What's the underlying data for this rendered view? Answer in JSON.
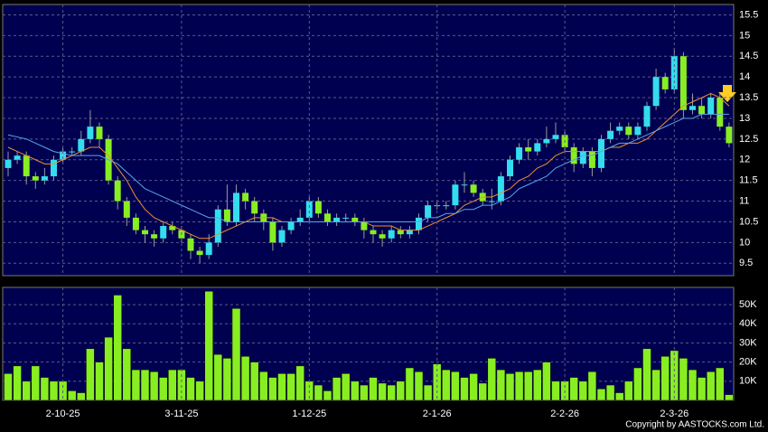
{
  "chart_data": [
    {
      "type": "candlestick",
      "up_color": "#33ddee",
      "down_color": "#88ee22",
      "grid": true,
      "ylim": [
        9.2,
        15.75
      ],
      "yticks": [
        9.5,
        10,
        10.5,
        11,
        11.5,
        12,
        12.5,
        13,
        13.5,
        14,
        14.5,
        15,
        15.5
      ],
      "open": [
        11.8,
        12.0,
        12.1,
        11.6,
        11.5,
        11.6,
        12.0,
        12.2,
        12.2,
        12.5,
        12.8,
        12.5,
        11.5,
        11.0,
        10.6,
        10.3,
        10.2,
        10.1,
        10.4,
        10.3,
        10.1,
        9.8,
        9.7,
        10.0,
        10.8,
        10.5,
        11.2,
        11.0,
        10.7,
        10.5,
        10.0,
        10.3,
        10.5,
        10.6,
        11.0,
        10.7,
        10.5,
        10.6,
        10.6,
        10.5,
        10.3,
        10.2,
        10.1,
        10.3,
        10.2,
        10.3,
        10.6,
        10.9,
        10.9,
        10.9,
        11.4,
        11.4,
        11.2,
        11.0,
        11.0,
        11.6,
        12.0,
        12.3,
        12.2,
        12.4,
        12.5,
        12.6,
        12.3,
        11.9,
        12.2,
        11.8,
        12.5,
        12.7,
        12.8,
        12.6,
        12.8,
        13.3,
        14.0,
        13.7,
        14.5,
        13.2,
        13.3,
        13.1,
        13.5,
        12.8
      ],
      "high": [
        12.2,
        12.2,
        12.2,
        11.7,
        11.8,
        12.1,
        12.3,
        12.3,
        12.7,
        13.2,
        12.9,
        12.6,
        11.6,
        11.1,
        10.7,
        10.4,
        10.3,
        10.5,
        10.5,
        10.4,
        10.2,
        9.9,
        10.2,
        10.9,
        11.4,
        11.4,
        11.3,
        11.1,
        10.8,
        10.6,
        10.4,
        10.6,
        10.8,
        11.1,
        11.1,
        10.8,
        10.7,
        10.7,
        10.7,
        10.6,
        10.4,
        10.3,
        10.4,
        10.4,
        10.4,
        10.7,
        11.0,
        11.0,
        11.0,
        11.5,
        11.7,
        11.5,
        11.3,
        11.3,
        11.7,
        12.1,
        12.4,
        12.5,
        12.5,
        12.8,
        12.9,
        12.7,
        12.4,
        12.3,
        12.3,
        12.6,
        12.9,
        12.9,
        12.9,
        12.9,
        13.4,
        14.2,
        14.1,
        14.7,
        14.6,
        13.6,
        13.5,
        13.6,
        13.6,
        12.9
      ],
      "low": [
        11.6,
        11.9,
        11.4,
        11.3,
        11.4,
        11.5,
        11.9,
        12.1,
        12.1,
        12.4,
        12.3,
        11.4,
        10.8,
        10.4,
        10.2,
        10.0,
        9.9,
        10.0,
        10.2,
        10.0,
        9.6,
        9.5,
        9.6,
        9.9,
        10.4,
        10.4,
        10.8,
        10.5,
        10.3,
        9.8,
        9.9,
        10.2,
        10.4,
        10.5,
        10.6,
        10.4,
        10.4,
        10.5,
        10.4,
        10.1,
        10.0,
        9.9,
        10.0,
        10.1,
        10.1,
        10.2,
        10.5,
        10.8,
        10.8,
        10.8,
        11.2,
        11.1,
        10.9,
        10.8,
        10.9,
        11.5,
        11.9,
        12.0,
        12.1,
        12.3,
        12.4,
        12.2,
        11.7,
        11.8,
        11.6,
        11.7,
        12.4,
        12.6,
        12.5,
        12.5,
        12.7,
        13.2,
        13.6,
        13.6,
        13.0,
        13.1,
        13.0,
        13.0,
        12.7,
        12.3
      ],
      "close": [
        12.0,
        12.1,
        11.6,
        11.5,
        11.6,
        12.0,
        12.2,
        12.2,
        12.5,
        12.8,
        12.5,
        11.5,
        11.0,
        10.6,
        10.3,
        10.2,
        10.1,
        10.4,
        10.3,
        10.1,
        9.8,
        9.7,
        10.0,
        10.8,
        10.5,
        11.2,
        11.0,
        10.7,
        10.5,
        10.0,
        10.3,
        10.5,
        10.6,
        11.0,
        10.7,
        10.5,
        10.6,
        10.6,
        10.5,
        10.3,
        10.2,
        10.1,
        10.3,
        10.2,
        10.3,
        10.6,
        10.9,
        10.9,
        10.9,
        11.4,
        11.4,
        11.2,
        11.0,
        11.0,
        11.6,
        12.0,
        12.3,
        12.2,
        12.4,
        12.5,
        12.6,
        12.3,
        11.9,
        12.2,
        11.8,
        12.5,
        12.7,
        12.8,
        12.6,
        12.8,
        13.3,
        14.0,
        13.7,
        14.5,
        13.2,
        13.3,
        13.1,
        13.5,
        12.8,
        12.4
      ],
      "series": [
        {
          "color": "#f09030",
          "values": [
            12.3,
            12.2,
            12.1,
            12.0,
            11.9,
            11.9,
            12.0,
            12.1,
            12.2,
            12.3,
            12.3,
            12.1,
            11.8,
            11.5,
            11.1,
            10.8,
            10.6,
            10.5,
            10.4,
            10.3,
            10.2,
            10.1,
            10.1,
            10.2,
            10.3,
            10.4,
            10.5,
            10.6,
            10.6,
            10.6,
            10.5,
            10.5,
            10.5,
            10.5,
            10.5,
            10.5,
            10.5,
            10.5,
            10.5,
            10.5,
            10.4,
            10.4,
            10.4,
            10.3,
            10.3,
            10.3,
            10.4,
            10.5,
            10.6,
            10.7,
            10.9,
            11.0,
            11.1,
            11.1,
            11.2,
            11.3,
            11.5,
            11.6,
            11.8,
            11.9,
            12.1,
            12.2,
            12.2,
            12.2,
            12.2,
            12.2,
            12.3,
            12.3,
            12.4,
            12.4,
            12.5,
            12.7,
            12.9,
            13.1,
            13.3,
            13.4,
            13.5,
            13.6,
            13.5,
            13.3
          ]
        },
        {
          "color": "#5aa8e8",
          "values": [
            12.6,
            12.55,
            12.5,
            12.4,
            12.3,
            12.2,
            12.15,
            12.1,
            12.1,
            12.1,
            12.1,
            12.0,
            11.9,
            11.7,
            11.5,
            11.3,
            11.2,
            11.1,
            11.0,
            10.9,
            10.8,
            10.7,
            10.6,
            10.6,
            10.5,
            10.5,
            10.5,
            10.5,
            10.5,
            10.5,
            10.5,
            10.5,
            10.5,
            10.5,
            10.5,
            10.5,
            10.5,
            10.5,
            10.5,
            10.5,
            10.5,
            10.5,
            10.5,
            10.5,
            10.5,
            10.5,
            10.6,
            10.6,
            10.7,
            10.7,
            10.8,
            10.8,
            10.9,
            10.9,
            11.0,
            11.1,
            11.3,
            11.4,
            11.5,
            11.6,
            11.8,
            11.9,
            12.0,
            12.1,
            12.1,
            12.2,
            12.3,
            12.4,
            12.4,
            12.5,
            12.6,
            12.7,
            12.8,
            12.9,
            13.0,
            13.0,
            13.1,
            13.1,
            13.1,
            13.1
          ]
        }
      ]
    },
    {
      "type": "bar",
      "color": "#88ee22",
      "grid": true,
      "ylim": [
        0,
        59000
      ],
      "yticks": [
        {
          "value": 10000,
          "label": "10K"
        },
        {
          "value": 20000,
          "label": "20K"
        },
        {
          "value": 30000,
          "label": "30K"
        },
        {
          "value": 40000,
          "label": "40K"
        },
        {
          "value": 50000,
          "label": "50K"
        }
      ],
      "categories": [
        null,
        null,
        null,
        null,
        null,
        null,
        "2-10-25",
        null,
        null,
        null,
        null,
        null,
        null,
        null,
        null,
        null,
        null,
        null,
        null,
        "3-11-25",
        null,
        null,
        null,
        null,
        null,
        null,
        null,
        null,
        null,
        null,
        null,
        null,
        null,
        "1-12-25",
        null,
        null,
        null,
        null,
        null,
        null,
        null,
        null,
        null,
        null,
        null,
        null,
        null,
        "2-1-26",
        null,
        null,
        null,
        null,
        null,
        null,
        null,
        null,
        null,
        null,
        null,
        null,
        null,
        "2-2-26",
        null,
        null,
        null,
        null,
        null,
        null,
        null,
        null,
        null,
        null,
        null,
        "2-3-26",
        null,
        null,
        null,
        null,
        null,
        null
      ],
      "values": [
        14000,
        18000,
        10000,
        18000,
        12000,
        10000,
        10000,
        5000,
        4000,
        27000,
        20000,
        33000,
        55000,
        27000,
        16000,
        16000,
        15000,
        12000,
        16000,
        16000,
        12000,
        10000,
        57000,
        24000,
        22000,
        48000,
        23000,
        20000,
        15000,
        12000,
        14000,
        14000,
        18000,
        10000,
        8000,
        5000,
        12000,
        14000,
        10000,
        8000,
        12000,
        9000,
        8000,
        10000,
        17000,
        15000,
        8000,
        19000,
        16000,
        15000,
        12000,
        14000,
        9000,
        22000,
        16000,
        14000,
        15000,
        15000,
        16000,
        20000,
        10000,
        10000,
        12000,
        10000,
        15000,
        6000,
        8000,
        4000,
        10000,
        17000,
        27000,
        16000,
        23000,
        26000,
        22000,
        16000,
        12000,
        15000,
        17000,
        3000
      ]
    }
  ],
  "copyright": "Copyright by AASTOCKS.com Ltd."
}
